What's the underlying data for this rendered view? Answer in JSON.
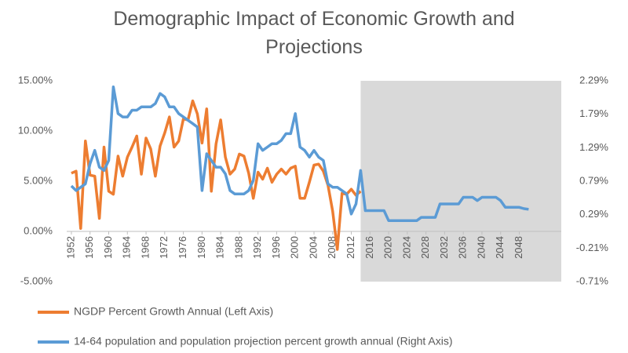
{
  "chart_data": {
    "type": "line",
    "title": "Demographic Impact of Economic Growth and Projections",
    "x": [
      1952,
      1953,
      1954,
      1955,
      1956,
      1957,
      1958,
      1959,
      1960,
      1961,
      1962,
      1963,
      1964,
      1965,
      1966,
      1967,
      1968,
      1969,
      1970,
      1971,
      1972,
      1973,
      1974,
      1975,
      1976,
      1977,
      1978,
      1979,
      1980,
      1981,
      1982,
      1983,
      1984,
      1985,
      1986,
      1987,
      1988,
      1989,
      1990,
      1991,
      1992,
      1993,
      1994,
      1995,
      1996,
      1997,
      1998,
      1999,
      2000,
      2001,
      2002,
      2003,
      2004,
      2005,
      2006,
      2007,
      2008,
      2009,
      2010,
      2011,
      2012,
      2013,
      2014,
      2015,
      2016,
      2017,
      2018,
      2019,
      2020,
      2021,
      2022,
      2023,
      2024,
      2025,
      2026,
      2027,
      2028,
      2029,
      2030,
      2031,
      2032,
      2033,
      2034,
      2035,
      2036,
      2037,
      2038,
      2039,
      2040,
      2041,
      2042,
      2043,
      2044,
      2045,
      2046,
      2047,
      2048,
      2049,
      2050
    ],
    "xlim": [
      1951,
      2057
    ],
    "xticks": [
      1952,
      1956,
      1960,
      1964,
      1968,
      1972,
      1976,
      1980,
      1984,
      1988,
      1992,
      1996,
      2000,
      2004,
      2008,
      2012,
      2016,
      2020,
      2024,
      2028,
      2032,
      2036,
      2040,
      2044,
      2048
    ],
    "shaded_x": [
      2014,
      2057
    ],
    "ylim": [
      -5,
      15
    ],
    "yticks": [
      {
        "value": -5,
        "label": "-5.00%"
      },
      {
        "value": 0,
        "label": "0.00%"
      },
      {
        "value": 5,
        "label": "5.00%"
      },
      {
        "value": 10,
        "label": "10.00%"
      },
      {
        "value": 15,
        "label": "15.00%"
      }
    ],
    "y2lim": [
      -0.71,
      2.29
    ],
    "y2ticks": [
      {
        "value": -0.71,
        "label": "-0.71%"
      },
      {
        "value": -0.21,
        "label": "-0.21%"
      },
      {
        "value": 0.29,
        "label": "0.29%"
      },
      {
        "value": 0.79,
        "label": "0.79%"
      },
      {
        "value": 1.29,
        "label": "1.29%"
      },
      {
        "value": 1.79,
        "label": "1.79%"
      },
      {
        "value": 2.29,
        "label": "2.29%"
      }
    ],
    "series": [
      {
        "name": "NGDP Percent Growth Annual (Left Axis)",
        "color": "#ed7d31",
        "axis": "y",
        "values": [
          5.8,
          6.0,
          0.3,
          9.0,
          5.6,
          5.5,
          1.3,
          8.4,
          4.0,
          3.7,
          7.5,
          5.5,
          7.4,
          8.4,
          9.5,
          5.7,
          9.3,
          8.2,
          5.5,
          8.5,
          9.8,
          11.4,
          8.4,
          9.0,
          11.2,
          11.1,
          13.0,
          11.7,
          8.8,
          12.2,
          4.0,
          8.7,
          11.1,
          7.4,
          5.7,
          6.2,
          7.7,
          7.5,
          5.8,
          3.3,
          5.9,
          5.2,
          6.3,
          4.9,
          5.7,
          6.2,
          5.7,
          6.3,
          6.5,
          3.3,
          3.3,
          4.9,
          6.6,
          6.7,
          6.0,
          4.6,
          2.0,
          -1.8,
          3.8,
          3.7,
          4.2,
          3.6,
          4.0,
          null,
          null,
          null,
          null,
          null,
          null,
          null,
          null,
          null,
          null,
          null,
          null,
          null,
          null,
          null,
          null,
          null,
          null,
          null,
          null,
          null,
          null,
          null,
          null,
          null,
          null,
          null,
          null,
          null,
          null,
          null,
          null,
          null,
          null,
          null,
          null
        ]
      },
      {
        "name": "14-64 population and population projection percent growth annual (Right Axis)",
        "color": "#5b9bd5",
        "axis": "y2",
        "values": [
          0.72,
          0.65,
          0.7,
          0.75,
          1.05,
          1.25,
          1.0,
          0.95,
          1.1,
          2.2,
          1.8,
          1.75,
          1.75,
          1.85,
          1.85,
          1.9,
          1.9,
          1.9,
          1.95,
          2.1,
          2.05,
          1.9,
          1.9,
          1.8,
          1.75,
          1.7,
          1.65,
          1.6,
          0.65,
          1.2,
          1.1,
          1.0,
          1.0,
          0.9,
          0.65,
          0.6,
          0.6,
          0.6,
          0.65,
          0.8,
          1.35,
          1.25,
          1.3,
          1.35,
          1.35,
          1.4,
          1.5,
          1.5,
          1.8,
          1.3,
          1.25,
          1.15,
          1.25,
          1.15,
          1.1,
          0.75,
          0.7,
          0.7,
          0.65,
          0.6,
          0.3,
          0.45,
          0.95,
          0.35,
          0.35,
          0.35,
          0.35,
          0.35,
          0.2,
          0.2,
          0.2,
          0.2,
          0.2,
          0.2,
          0.2,
          0.25,
          0.25,
          0.25,
          0.25,
          0.45,
          0.45,
          0.45,
          0.45,
          0.45,
          0.55,
          0.55,
          0.55,
          0.5,
          0.55,
          0.55,
          0.55,
          0.55,
          0.5,
          0.4,
          0.4,
          0.4,
          0.4,
          0.38,
          0.37
        ]
      }
    ]
  }
}
